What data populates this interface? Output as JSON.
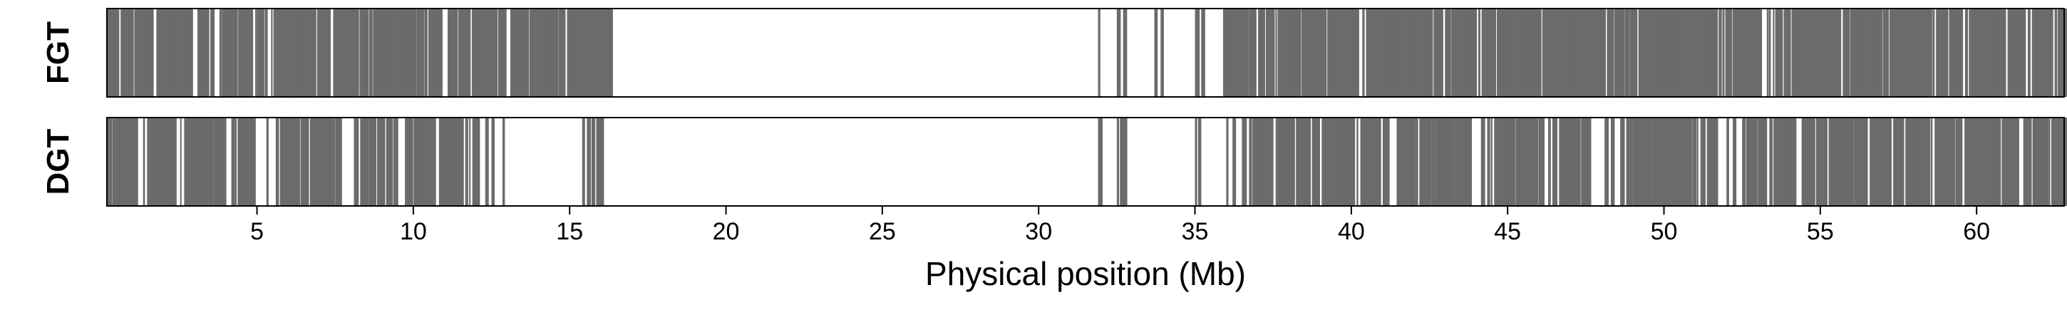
{
  "chart_data": {
    "type": "marker-density",
    "xlabel": "Physical position (Mb)",
    "xlim": [
      0.2,
      62.8
    ],
    "xticks": [
      5,
      10,
      15,
      20,
      25,
      30,
      35,
      40,
      45,
      50,
      55,
      60
    ],
    "mark_color": "#6b6b6b",
    "tracks": [
      {
        "label": "FGT",
        "dense_regions": [
          [
            0.2,
            16.2
          ],
          [
            35.9,
            62.8
          ]
        ],
        "sparse_positions": [
          31.9,
          32.5,
          32.7,
          33.7,
          33.9,
          35.0,
          35.2
        ],
        "gaps": [
          [
            1.6,
            1.75
          ],
          [
            2.9,
            3.05
          ],
          [
            3.55,
            3.7
          ],
          [
            5.3,
            5.45
          ],
          [
            7.2,
            7.35
          ],
          [
            10.9,
            11.05
          ],
          [
            12.9,
            13.05
          ],
          [
            14.2,
            14.3
          ],
          [
            40.2,
            40.3
          ],
          [
            44.8,
            44.9
          ],
          [
            49.6,
            49.7
          ],
          [
            53.1,
            53.2
          ],
          [
            57.4,
            57.5
          ],
          [
            60.8,
            60.9
          ]
        ]
      },
      {
        "label": "DGT",
        "dense_regions": [
          [
            0.2,
            4.9
          ],
          [
            5.6,
            7.6
          ],
          [
            8.3,
            11.9
          ],
          [
            36.5,
            47.6
          ],
          [
            48.6,
            51.6
          ],
          [
            52.5,
            62.8
          ]
        ],
        "sparse_positions": [
          5.3,
          8.1,
          12.3,
          12.5,
          12.85,
          15.4,
          15.55,
          15.7,
          15.85,
          15.95,
          31.9,
          32.5,
          32.6,
          32.7,
          35.0,
          35.1,
          36.0,
          36.2,
          48.1,
          48.3,
          52.0,
          52.2
        ],
        "gaps": [
          [
            1.1,
            1.3
          ],
          [
            2.3,
            2.5
          ],
          [
            3.9,
            4.1
          ],
          [
            9.4,
            9.6
          ],
          [
            10.6,
            10.8
          ],
          [
            38.0,
            38.15
          ],
          [
            41.2,
            41.35
          ],
          [
            43.9,
            44.05
          ],
          [
            46.1,
            46.25
          ],
          [
            50.3,
            50.45
          ],
          [
            54.2,
            54.35
          ],
          [
            56.4,
            56.55
          ],
          [
            59.1,
            59.25
          ],
          [
            61.3,
            61.45
          ]
        ]
      }
    ]
  }
}
